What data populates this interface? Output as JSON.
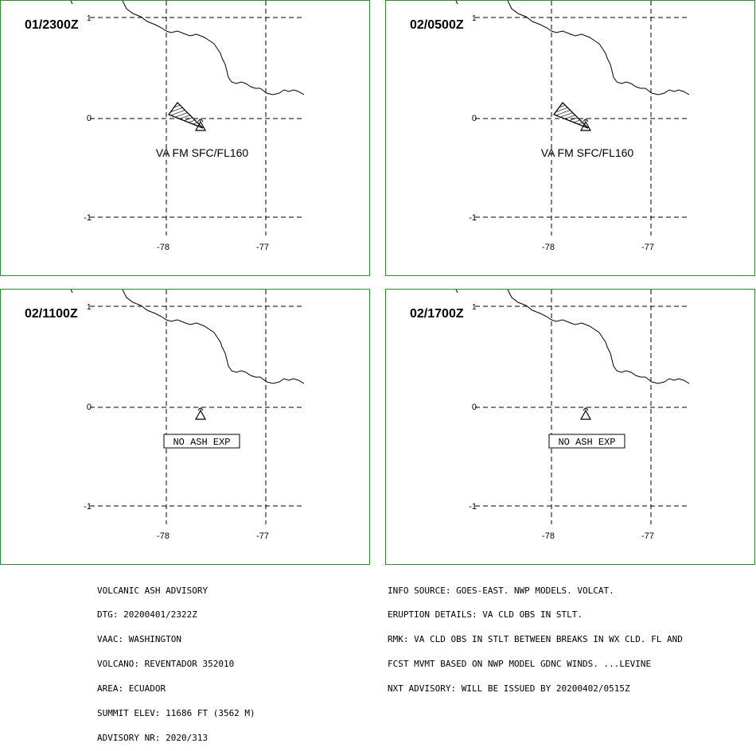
{
  "panels": [
    {
      "time": "01/2300Z",
      "sup": "1",
      "label": "VA FM SFC/FL160",
      "plume": true
    },
    {
      "time": "02/0500Z",
      "sup": "1",
      "label": "VA FM SFC/FL160",
      "plume": true
    },
    {
      "time": "02/1100Z",
      "sup": "1",
      "label": "NO ASH EXP",
      "plume": false
    },
    {
      "time": "02/1700Z",
      "sup": "1",
      "label": "NO ASH EXP",
      "plume": false
    }
  ],
  "axes": {
    "lat_labels": [
      "0",
      "-1"
    ],
    "lon_labels": [
      "-78",
      "-77"
    ]
  },
  "advisory_left": [
    "VOLCANIC ASH ADVISORY",
    "DTG: 20200401/2322Z",
    "VAAC: WASHINGTON",
    "VOLCANO: REVENTADOR 352010",
    "AREA: ECUADOR",
    "SUMMIT ELEV: 11686 FT (3562 M)",
    "ADVISORY NR: 2020/313"
  ],
  "advisory_right": [
    "INFO SOURCE: GOES-EAST. NWP MODELS. VOLCAT.",
    "ERUPTION DETAILS: VA CLD OBS IN STLT.",
    "RMK: VA CLD OBS IN STLT BETWEEN BREAKS IN WX CLD. FL AND",
    "FCST MVMT BASED ON NWP MODEL GDNC WINDS. ...LEVINE",
    "NXT ADVISORY: WILL BE ISSUED BY 20200402/0515Z"
  ],
  "colors": {
    "frame": "#2e8b2e",
    "lines": "#000000",
    "background": "#ffffff"
  },
  "icons": {
    "volcano": "volcano-triangle-icon",
    "plume": "ash-plume-polygon"
  }
}
